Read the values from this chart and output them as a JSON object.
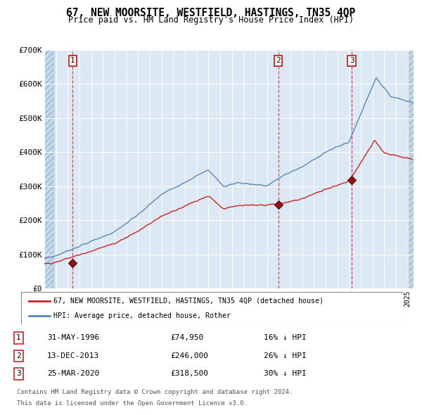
{
  "title": "67, NEW MOORSITE, WESTFIELD, HASTINGS, TN35 4QP",
  "subtitle": "Price paid vs. HM Land Registry's House Price Index (HPI)",
  "legend_line1": "67, NEW MOORSITE, WESTFIELD, HASTINGS, TN35 4QP (detached house)",
  "legend_line2": "HPI: Average price, detached house, Rother",
  "footnote1": "Contains HM Land Registry data © Crown copyright and database right 2024.",
  "footnote2": "This data is licensed under the Open Government Licence v3.0.",
  "transactions": [
    {
      "num": 1,
      "date": "31-MAY-1996",
      "price": 74950,
      "pct": "16%",
      "dir": "↓"
    },
    {
      "num": 2,
      "date": "13-DEC-2013",
      "price": 246000,
      "pct": "26%",
      "dir": "↓"
    },
    {
      "num": 3,
      "date": "25-MAR-2020",
      "price": 318500,
      "pct": "30%",
      "dir": "↓"
    }
  ],
  "transaction_dates_decimal": [
    1996.42,
    2013.95,
    2020.23
  ],
  "transaction_prices": [
    74950,
    246000,
    318500
  ],
  "hpi_color": "#5588bb",
  "price_color": "#cc2222",
  "background_color": "#dce9f5",
  "vline_color": "#cc3333",
  "ylim": [
    0,
    700000
  ],
  "yticks": [
    0,
    100000,
    200000,
    300000,
    400000,
    500000,
    600000,
    700000
  ],
  "xlim_start": 1994.0,
  "xlim_end": 2025.5,
  "hatch_left_end": 1994.75,
  "hatch_right_start": 2025.08
}
